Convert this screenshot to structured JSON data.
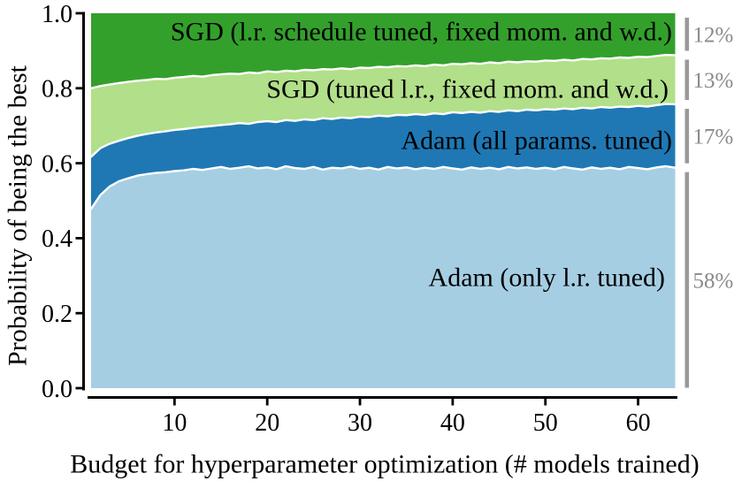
{
  "figure": {
    "background": "#ffffff",
    "axis_color": "#000000",
    "boundary_stroke_color": "#ffffff",
    "share_bar_color": "#999999",
    "share_text_color": "#8a8a8a"
  },
  "chart_data": {
    "type": "area",
    "stacked": true,
    "title": "",
    "xlabel": "Budget for hyperparameter optimization (# models trained)",
    "ylabel": "Probability of being the best",
    "x_range": [
      1,
      64
    ],
    "ylim": [
      0,
      1
    ],
    "grid": false,
    "x_ticks": [
      10,
      20,
      30,
      40,
      50,
      60
    ],
    "x_tick_labels": [
      "10",
      "20",
      "30",
      "40",
      "50",
      "60"
    ],
    "y_ticks": [
      0.0,
      0.2,
      0.4,
      0.6,
      0.8,
      1.0
    ],
    "y_tick_labels": [
      "0.0",
      "0.2",
      "0.4",
      "0.6",
      "0.8",
      "1.0"
    ],
    "legend_position": "labels-inside-areas",
    "note": "x values are consecutive integer budgets 1..64; 'top' arrays are cumulative stacked probability boundaries",
    "series": [
      {
        "label": "Adam (only l.r. tuned)",
        "color": "#a6cee3",
        "share_label": "58%",
        "top": [
          0.478,
          0.515,
          0.538,
          0.552,
          0.56,
          0.567,
          0.571,
          0.574,
          0.576,
          0.579,
          0.581,
          0.585,
          0.582,
          0.586,
          0.59,
          0.585,
          0.588,
          0.592,
          0.586,
          0.589,
          0.584,
          0.592,
          0.587,
          0.585,
          0.59,
          0.583,
          0.588,
          0.586,
          0.591,
          0.585,
          0.588,
          0.583,
          0.59,
          0.586,
          0.589,
          0.584,
          0.588,
          0.585,
          0.59,
          0.586,
          0.583,
          0.589,
          0.585,
          0.588,
          0.584,
          0.59,
          0.586,
          0.589,
          0.585,
          0.588,
          0.584,
          0.59,
          0.586,
          0.583,
          0.589,
          0.585,
          0.588,
          0.584,
          0.59,
          0.587,
          0.584,
          0.589,
          0.592,
          0.588
        ]
      },
      {
        "label": "Adam (all params. tuned)",
        "color": "#1f78b4",
        "share_label": "17%",
        "top": [
          0.617,
          0.64,
          0.652,
          0.66,
          0.667,
          0.673,
          0.678,
          0.682,
          0.685,
          0.689,
          0.691,
          0.694,
          0.697,
          0.699,
          0.702,
          0.704,
          0.707,
          0.705,
          0.71,
          0.712,
          0.71,
          0.715,
          0.713,
          0.717,
          0.715,
          0.72,
          0.718,
          0.722,
          0.72,
          0.724,
          0.723,
          0.727,
          0.725,
          0.729,
          0.728,
          0.731,
          0.729,
          0.733,
          0.731,
          0.736,
          0.734,
          0.737,
          0.735,
          0.739,
          0.737,
          0.741,
          0.739,
          0.743,
          0.741,
          0.744,
          0.743,
          0.746,
          0.744,
          0.748,
          0.746,
          0.75,
          0.748,
          0.751,
          0.75,
          0.753,
          0.751,
          0.755,
          0.758,
          0.757
        ]
      },
      {
        "label": "SGD (tuned l.r., fixed mom. and w.d.)",
        "color": "#b2df8a",
        "share_label": "13%",
        "top": [
          0.8,
          0.806,
          0.81,
          0.814,
          0.817,
          0.82,
          0.822,
          0.825,
          0.824,
          0.828,
          0.83,
          0.833,
          0.831,
          0.835,
          0.837,
          0.839,
          0.838,
          0.842,
          0.84,
          0.845,
          0.843,
          0.847,
          0.845,
          0.849,
          0.848,
          0.851,
          0.85,
          0.853,
          0.851,
          0.855,
          0.854,
          0.857,
          0.856,
          0.859,
          0.858,
          0.861,
          0.859,
          0.863,
          0.861,
          0.865,
          0.864,
          0.867,
          0.865,
          0.869,
          0.867,
          0.871,
          0.869,
          0.872,
          0.871,
          0.874,
          0.873,
          0.876,
          0.874,
          0.878,
          0.877,
          0.88,
          0.879,
          0.882,
          0.881,
          0.884,
          0.883,
          0.886,
          0.889,
          0.888
        ]
      },
      {
        "label": "SGD (l.r. schedule tuned, fixed mom. and w.d.)",
        "color": "#33a02c",
        "share_label": "12%",
        "top": 1.0
      }
    ]
  }
}
